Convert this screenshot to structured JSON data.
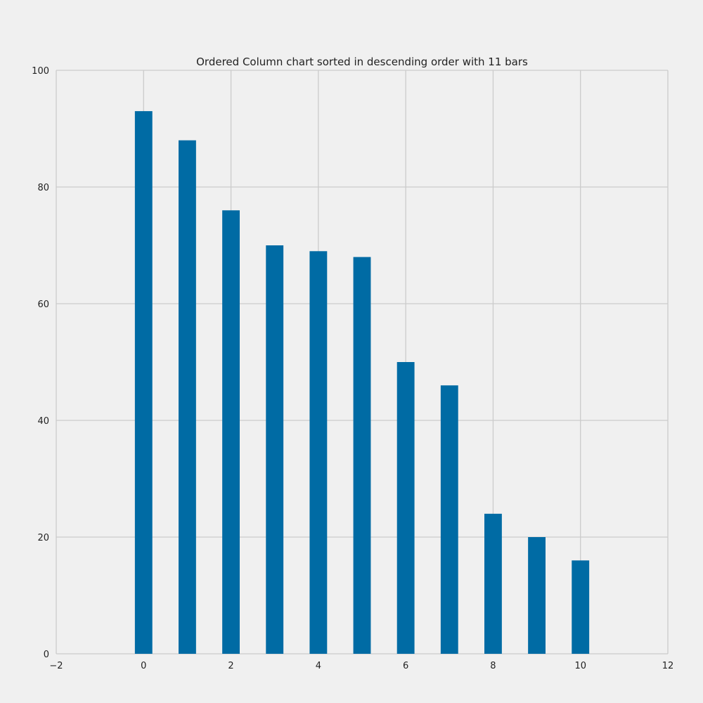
{
  "chart_data": {
    "type": "bar",
    "title": "Ordered Column chart sorted in descending order with 11 bars",
    "xlabel": "",
    "ylabel": "",
    "x": [
      0,
      1,
      2,
      3,
      4,
      5,
      6,
      7,
      8,
      9,
      10
    ],
    "values": [
      93,
      88,
      76,
      70,
      69,
      68,
      50,
      46,
      24,
      20,
      16
    ],
    "bar_width": 0.4,
    "xlim": [
      -2,
      12
    ],
    "ylim": [
      0,
      100
    ],
    "x_ticks": [
      -2,
      0,
      2,
      4,
      6,
      8,
      10,
      12
    ],
    "x_tick_labels": [
      "−2",
      "0",
      "2",
      "4",
      "6",
      "8",
      "10",
      "12"
    ],
    "y_ticks": [
      0,
      20,
      40,
      60,
      80,
      100
    ],
    "y_tick_labels": [
      "0",
      "20",
      "40",
      "60",
      "80",
      "100"
    ],
    "grid": true,
    "legend": "none",
    "bar_color": "#006ba4",
    "background_color": "#f0f0f0",
    "grid_color": "#cbcbcb"
  }
}
